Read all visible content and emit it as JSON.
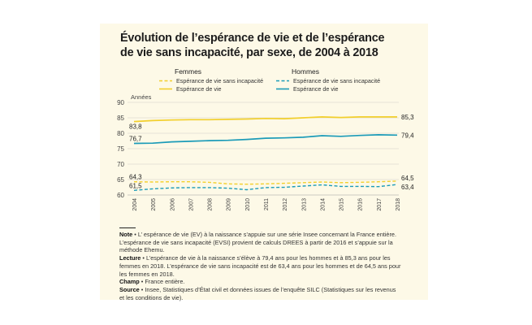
{
  "title": "Évolution de l’espérance de vie et de l’espérance de vie sans incapacité, par sexe, de 2004 à 2018",
  "colors": {
    "background": "#fdf9e7",
    "women": "#f2cf2c",
    "men": "#1b9bb8",
    "grid": "#cfcfc8",
    "text": "#333333"
  },
  "chart_data": {
    "type": "line",
    "title": "Évolution de l’espérance de vie et de l’espérance de vie sans incapacité, par sexe, de 2004 à 2018",
    "ylabel": "Années",
    "xlabel": "",
    "ylim": [
      60,
      90
    ],
    "yticks": [
      60,
      65,
      70,
      75,
      80,
      85,
      90
    ],
    "x": [
      2004,
      2005,
      2006,
      2007,
      2008,
      2009,
      2010,
      2011,
      2012,
      2013,
      2014,
      2015,
      2016,
      2017,
      2018
    ],
    "legend": {
      "women_header": "Femmes",
      "men_header": "Hommes"
    },
    "series": [
      {
        "id": "f-evsi",
        "group": "Femmes",
        "name": "Espérance de vie sans incapacité",
        "style": "dashed",
        "color": "#f2cf2c",
        "values": [
          64.3,
          64.2,
          64.3,
          64.3,
          64.1,
          63.6,
          63.5,
          63.6,
          63.8,
          64.0,
          64.2,
          64.0,
          64.1,
          64.3,
          64.5
        ]
      },
      {
        "id": "f-ev",
        "group": "Femmes",
        "name": "Espérance de vie",
        "style": "solid",
        "color": "#f2cf2c",
        "values": [
          83.8,
          84.1,
          84.3,
          84.4,
          84.4,
          84.5,
          84.6,
          84.8,
          84.7,
          85.0,
          85.3,
          85.1,
          85.3,
          85.3,
          85.3
        ]
      },
      {
        "id": "m-evsi",
        "group": "Hommes",
        "name": "Espérance de vie sans incapacité",
        "style": "dashed",
        "color": "#1b9bb8",
        "values": [
          61.5,
          62.0,
          62.3,
          62.4,
          62.4,
          62.2,
          61.7,
          62.4,
          62.5,
          62.9,
          63.3,
          62.8,
          62.8,
          62.7,
          63.4
        ]
      },
      {
        "id": "m-ev",
        "group": "Hommes",
        "name": "Espérance de vie",
        "style": "solid",
        "color": "#1b9bb8",
        "values": [
          76.7,
          76.8,
          77.2,
          77.4,
          77.6,
          77.7,
          78.0,
          78.4,
          78.5,
          78.7,
          79.2,
          79.0,
          79.3,
          79.5,
          79.4
        ]
      }
    ],
    "annotations": [
      {
        "series": "f-evsi",
        "index": 0,
        "text": "64,3"
      },
      {
        "series": "f-ev",
        "index": 0,
        "text": "83,8"
      },
      {
        "series": "m-evsi",
        "index": 0,
        "text": "61,5"
      },
      {
        "series": "m-ev",
        "index": 0,
        "text": "76,7"
      },
      {
        "series": "f-ev",
        "index": 14,
        "text": "85,3"
      },
      {
        "series": "m-ev",
        "index": 14,
        "text": "79,4"
      },
      {
        "series": "f-evsi",
        "index": 14,
        "text": "64,5"
      },
      {
        "series": "m-evsi",
        "index": 14,
        "text": "63,4"
      }
    ]
  },
  "notes": {
    "note_label": "Note",
    "note_text": "L’ espérance de vie (EV) à la naissance s’appuie sur une série Insee concernant la France entière. L’espérance de vie sans incapacité (EVSI) provient de calculs DREES à partir de 2016 et s’appuie sur la méthode Ehemu.",
    "lecture_label": "Lecture",
    "lecture_text": "L’espérance de vie à la naissance s’élève à 79,4 ans pour les hommes et à 85,3 ans pour les femmes en 2018. L’espérance de vie sans incapacité est de 63,4 ans pour les hommes et de 64,5 ans pour les femmes en 2018.",
    "champ_label": "Champ",
    "champ_text": "France entière.",
    "source_label": "Source",
    "source_text": "Insee, Statistiques d’État civil et données issues de l’enquête SILC (Statistiques sur les revenus et les conditions de vie)."
  }
}
